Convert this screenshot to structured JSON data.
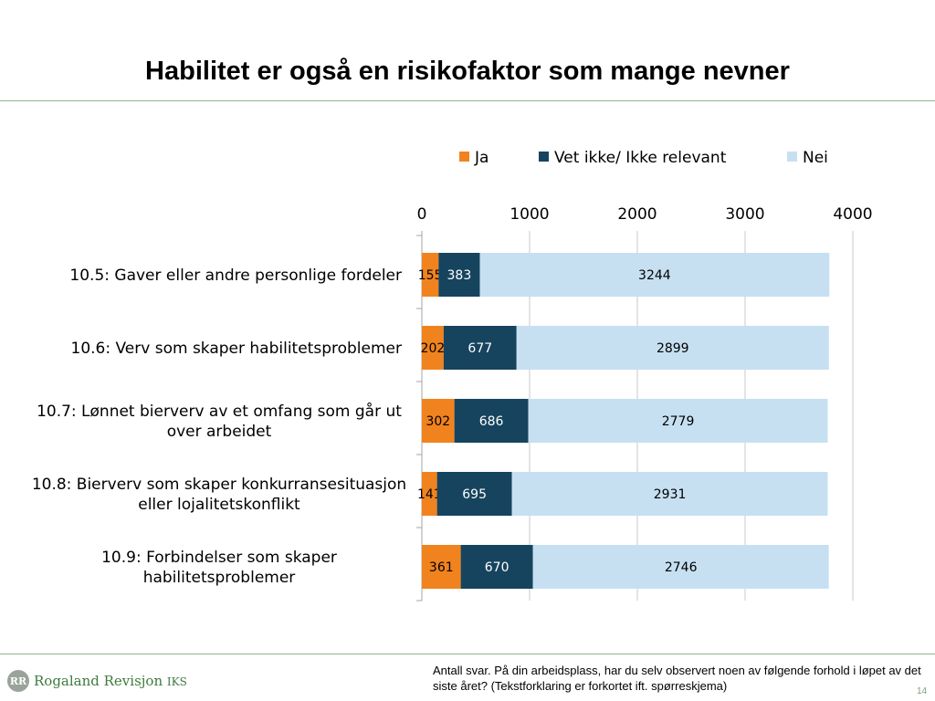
{
  "slide": {
    "title": "Habilitet er også en risikofaktor som mange nevner",
    "note": "Antall svar. På din arbeidsplass, har du selv observert noen av følgende forhold i løpet av det siste året? (Tekstforklaring er forkortet ift. spørreskjema)",
    "page_number": "14",
    "logo": {
      "text": "Rogaland Revisjon",
      "suffix": "IKS",
      "mark_text": "RR"
    }
  },
  "chart_data": {
    "type": "bar",
    "orientation": "horizontal",
    "stacked": true,
    "categories": [
      "10.5: Gaver eller andre personlige fordeler",
      "10.6: Verv som skaper habilitetsproblemer",
      "10.7: Lønnet bierverv av et omfang som går ut over arbeidet",
      "10.8: Bierverv som skaper konkurransesituasjon eller lojalitetskonflikt",
      "10.9: Forbindelser som skaper habilitetsproblemer"
    ],
    "series": [
      {
        "name": "Ja",
        "color": "#f0831e",
        "values": [
          155,
          202,
          302,
          141,
          361
        ]
      },
      {
        "name": "Vet ikke/ Ikke relevant",
        "color": "#16445e",
        "values": [
          383,
          677,
          686,
          695,
          670
        ]
      },
      {
        "name": "Nei",
        "color": "#c6e0f2",
        "values": [
          3244,
          2899,
          2779,
          2931,
          2746
        ]
      }
    ],
    "xlim": [
      0,
      4000
    ],
    "x_ticks": [
      0,
      1000,
      2000,
      3000,
      4000
    ],
    "axis_position": "top",
    "grid": true,
    "legend_position": "top",
    "data_labels": true
  }
}
